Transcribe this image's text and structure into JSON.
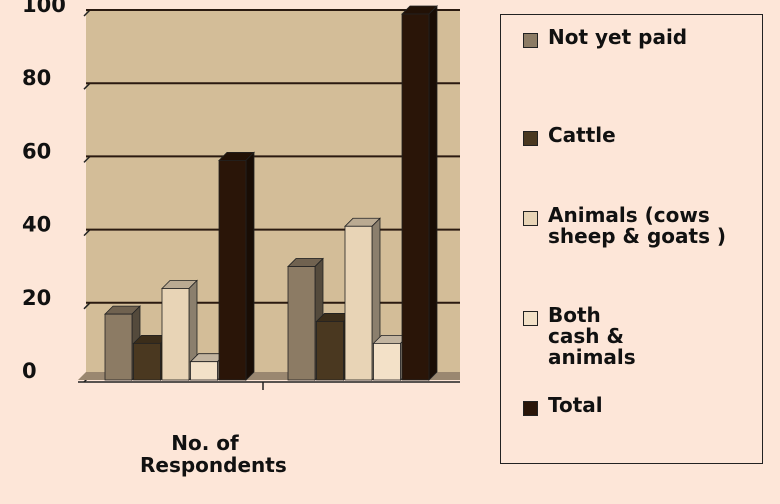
{
  "chart_data": {
    "type": "bar3d",
    "x_label": "No. of Respondents",
    "categories": [
      null,
      null
    ],
    "series": [
      {
        "name": "Not yet paid",
        "color": "#8c7b64",
        "values": [
          18,
          31
        ]
      },
      {
        "name": "Cattle",
        "color": "#4a3820",
        "values": [
          10,
          16
        ]
      },
      {
        "name": "Animals (cows sheep & goats )",
        "color": "#e8d4b6",
        "values": [
          25,
          42
        ]
      },
      {
        "name": "Both cash & animals",
        "color": "#f3e1c8",
        "values": [
          5,
          10
        ]
      },
      {
        "name": "Total",
        "color": "#2a1508",
        "values": [
          60,
          100
        ]
      }
    ],
    "ylim": [
      0,
      100
    ],
    "yticks": [
      0,
      20,
      40,
      60,
      80,
      100
    ],
    "grid": true,
    "plot_color": "#d3bd98",
    "legend": "right"
  }
}
